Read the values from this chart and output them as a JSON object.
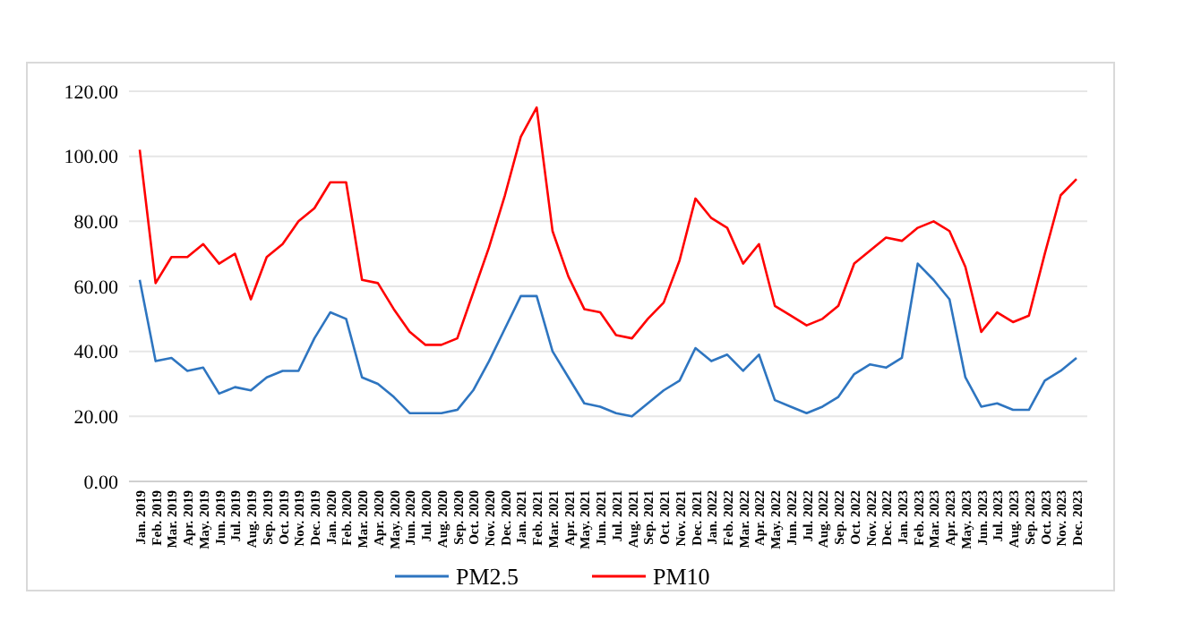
{
  "chart_data": {
    "type": "line",
    "categories": [
      "Jan. 2019",
      "Feb. 2019",
      "Mar. 2019",
      "Apr. 2019",
      "May. 2019",
      "Jun. 2019",
      "Jul. 2019",
      "Aug. 2019",
      "Sep. 2019",
      "Oct. 2019",
      "Nov. 2019",
      "Dec. 2019",
      "Jan. 2020",
      "Feb. 2020",
      "Mar. 2020",
      "Apr. 2020",
      "May. 2020",
      "Jun. 2020",
      "Jul. 2020",
      "Aug. 2020",
      "Sep. 2020",
      "Oct. 2020",
      "Nov. 2020",
      "Dec. 2020",
      "Jan. 2021",
      "Feb. 2021",
      "Mar. 2021",
      "Apr. 2021",
      "May. 2021",
      "Jun. 2021",
      "Jul. 2021",
      "Aug. 2021",
      "Sep. 2021",
      "Oct. 2021",
      "Nov. 2021",
      "Dec. 2021",
      "Jan. 2022",
      "Feb. 2022",
      "Mar. 2022",
      "Apr. 2022",
      "May. 2022",
      "Jun. 2022",
      "Jul. 2022",
      "Aug. 2022",
      "Sep. 2022",
      "Oct. 2022",
      "Nov. 2022",
      "Dec. 2022",
      "Jan. 2023",
      "Feb. 2023",
      "Mar. 2023",
      "Apr. 2023",
      "May. 2023",
      "Jun. 2023",
      "Jul. 2023",
      "Aug. 2023",
      "Sep. 2023",
      "Oct. 2023",
      "Nov. 2023",
      "Dec. 2023"
    ],
    "series": [
      {
        "name": "PM2.5",
        "color": "#2e75c0",
        "values": [
          62,
          37,
          38,
          34,
          35,
          27,
          29,
          28,
          32,
          34,
          34,
          44,
          52,
          50,
          32,
          30,
          26,
          21,
          21,
          21,
          22,
          28,
          37,
          47,
          57,
          57,
          40,
          32,
          24,
          23,
          21,
          20,
          24,
          28,
          31,
          41,
          37,
          39,
          34,
          39,
          25,
          23,
          21,
          23,
          26,
          33,
          36,
          35,
          38,
          67,
          62,
          56,
          32,
          23,
          24,
          22,
          22,
          31,
          34,
          38
        ]
      },
      {
        "name": "PM10",
        "color": "#ff0000",
        "values": [
          102,
          61,
          69,
          69,
          73,
          67,
          70,
          56,
          69,
          73,
          80,
          84,
          92,
          92,
          62,
          61,
          53,
          46,
          42,
          42,
          44,
          58,
          72,
          88,
          106,
          115,
          77,
          63,
          53,
          52,
          45,
          44,
          50,
          55,
          68,
          87,
          81,
          78,
          67,
          73,
          54,
          51,
          48,
          50,
          54,
          67,
          71,
          75,
          74,
          78,
          80,
          77,
          66,
          46,
          52,
          49,
          51,
          70,
          88,
          93
        ]
      }
    ],
    "ylim": [
      0,
      120
    ],
    "yticks": [
      {
        "value": 0,
        "label": "0.00"
      },
      {
        "value": 20,
        "label": "20.00"
      },
      {
        "value": 40,
        "label": "40.00"
      },
      {
        "value": 60,
        "label": "60.00"
      },
      {
        "value": 80,
        "label": "80.00"
      },
      {
        "value": 100,
        "label": "100.00"
      },
      {
        "value": 120,
        "label": "120.00"
      }
    ],
    "grid": "y",
    "legend": "bottom",
    "marker": "none",
    "line_style": "solid"
  }
}
